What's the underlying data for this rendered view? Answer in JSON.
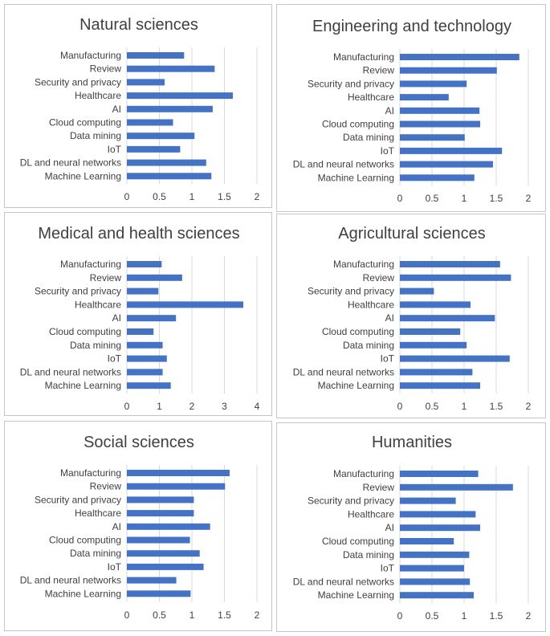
{
  "colors": {
    "bar": "#4472c4",
    "grid": "#d9d9d9",
    "text": "#404040",
    "border": "#c6c6c6"
  },
  "chart_data": [
    {
      "type": "bar",
      "orientation": "horizontal",
      "title": "Natural sciences",
      "categories": [
        "Manufacturing",
        "Review",
        "Security and privacy",
        "Healthcare",
        "AI",
        "Cloud computing",
        "Data mining",
        "IoT",
        "DL and neural networks",
        "Machine Learning"
      ],
      "values": [
        0.88,
        1.35,
        0.58,
        1.63,
        1.32,
        0.71,
        1.04,
        0.82,
        1.22,
        1.3
      ],
      "xlim": [
        0,
        2
      ],
      "xticks": [
        "0",
        "0.5",
        "1",
        "1.5",
        "2"
      ]
    },
    {
      "type": "bar",
      "orientation": "horizontal",
      "title": "Engineering and technology",
      "categories": [
        "Manufacturing",
        "Review",
        "Security and privacy",
        "Healthcare",
        "AI",
        "Cloud computing",
        "Data mining",
        "IoT",
        "DL and neural networks",
        "Machine Learning"
      ],
      "values": [
        1.86,
        1.51,
        1.04,
        0.76,
        1.24,
        1.25,
        1.01,
        1.59,
        1.45,
        1.16
      ],
      "xlim": [
        0,
        2
      ],
      "xticks": [
        "0",
        "0.5",
        "1",
        "1.5",
        "2"
      ]
    },
    {
      "type": "bar",
      "orientation": "horizontal",
      "title": "Medical and health sciences",
      "categories": [
        "Manufacturing",
        "Review",
        "Security and privacy",
        "Healthcare",
        "AI",
        "Cloud computing",
        "Data mining",
        "IoT",
        "DL and neural networks",
        "Machine Learning"
      ],
      "values": [
        1.07,
        1.7,
        0.97,
        3.58,
        1.51,
        0.82,
        1.1,
        1.23,
        1.1,
        1.35
      ],
      "xlim": [
        0,
        4
      ],
      "xticks": [
        "0",
        "1",
        "2",
        "3",
        "4"
      ]
    },
    {
      "type": "bar",
      "orientation": "horizontal",
      "title": "Agricultural sciences",
      "categories": [
        "Manufacturing",
        "Review",
        "Security and privacy",
        "Healthcare",
        "AI",
        "Cloud computing",
        "Data mining",
        "IoT",
        "DL and neural networks",
        "Machine Learning"
      ],
      "values": [
        1.56,
        1.73,
        0.53,
        1.1,
        1.48,
        0.94,
        1.04,
        1.71,
        1.13,
        1.25
      ],
      "xlim": [
        0,
        2
      ],
      "xticks": [
        "0",
        "0.5",
        "1",
        "1.5",
        "2"
      ]
    },
    {
      "type": "bar",
      "orientation": "horizontal",
      "title": "Social sciences",
      "categories": [
        "Manufacturing",
        "Review",
        "Security and privacy",
        "Healthcare",
        "AI",
        "Cloud computing",
        "Data mining",
        "IoT",
        "DL and neural networks",
        "Machine Learning"
      ],
      "values": [
        1.58,
        1.51,
        1.03,
        1.03,
        1.28,
        0.97,
        1.12,
        1.18,
        0.76,
        0.98
      ],
      "xlim": [
        0,
        2
      ],
      "xticks": [
        "0",
        "0.5",
        "1",
        "1.5",
        "2"
      ]
    },
    {
      "type": "bar",
      "orientation": "horizontal",
      "title": "Humanities",
      "categories": [
        "Manufacturing",
        "Review",
        "Security and privacy",
        "Healthcare",
        "AI",
        "Cloud computing",
        "Data mining",
        "IoT",
        "DL and neural networks",
        "Machine Learning"
      ],
      "values": [
        1.22,
        1.76,
        0.87,
        1.18,
        1.25,
        0.84,
        1.08,
        1.0,
        1.09,
        1.15
      ],
      "xlim": [
        0,
        2
      ],
      "xticks": [
        "0",
        "0.5",
        "1",
        "1.5",
        "2"
      ]
    }
  ]
}
